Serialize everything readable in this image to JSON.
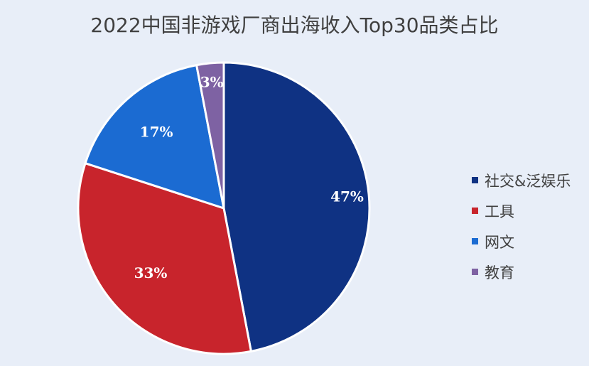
{
  "chart_data": {
    "type": "pie",
    "title": "2022中国非游戏厂商出海收入Top30品类占比",
    "slices": [
      {
        "name": "社交&泛娱乐",
        "value": 47,
        "label": "47%",
        "color": "#0f3283"
      },
      {
        "name": "工具",
        "value": 33,
        "label": "33%",
        "color": "#c8242c"
      },
      {
        "name": "网文",
        "value": 17,
        "label": "17%",
        "color": "#1b6bd2"
      },
      {
        "name": "教育",
        "value": 3,
        "label": "3%",
        "color": "#7e62a3"
      }
    ],
    "legend_position": "right"
  }
}
